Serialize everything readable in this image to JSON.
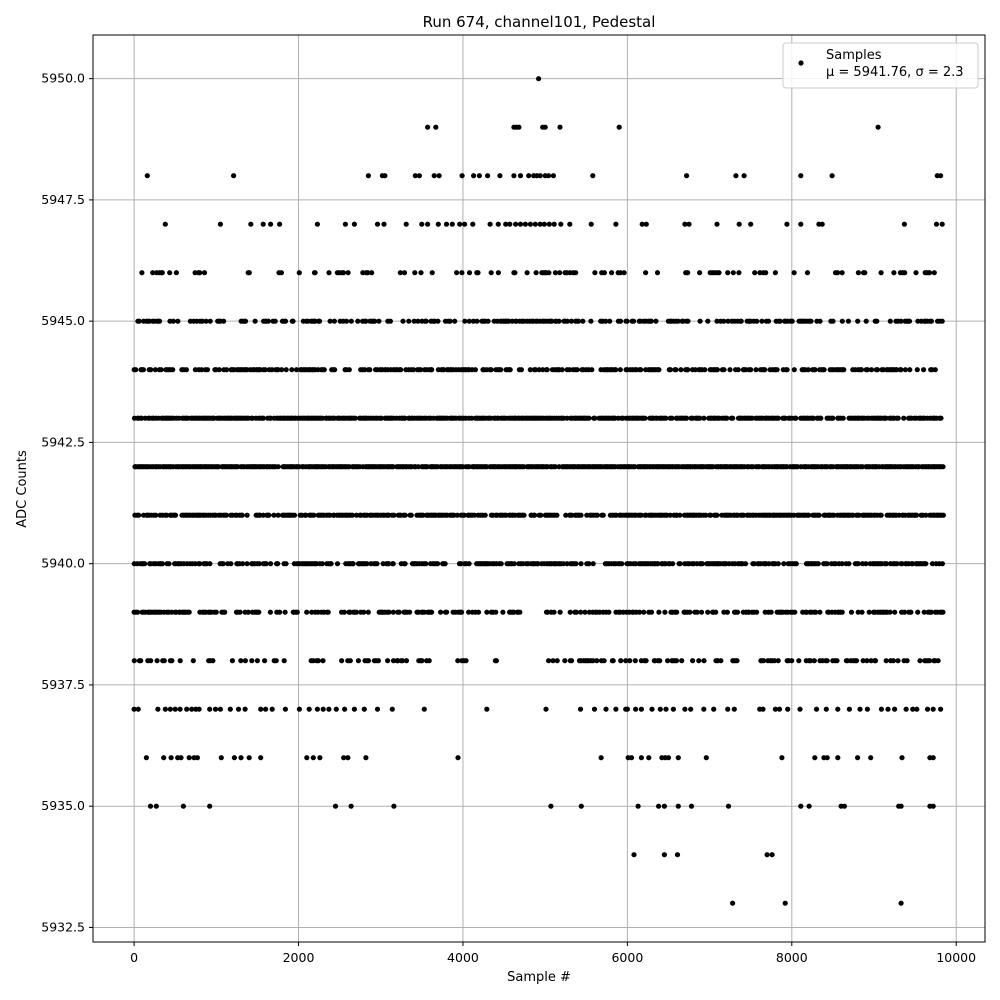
{
  "chart_data": {
    "type": "scatter",
    "title": "Run 674, channel101, Pedestal",
    "xlabel": "Sample #",
    "ylabel": "ADC Counts",
    "xlim": [
      -500,
      10350
    ],
    "ylim": [
      5932.2,
      5950.9
    ],
    "x_ticks": [
      0,
      2000,
      4000,
      6000,
      8000,
      10000
    ],
    "x_tick_labels": [
      "0",
      "2000",
      "4000",
      "6000",
      "8000",
      "10000"
    ],
    "y_ticks": [
      5932.5,
      5935.0,
      5937.5,
      5940.0,
      5942.5,
      5945.0,
      5947.5,
      5950.0
    ],
    "y_tick_labels": [
      "5932.5",
      "5935.0",
      "5937.5",
      "5940.0",
      "5942.5",
      "5945.0",
      "5947.5",
      "5950.0"
    ],
    "grid": true,
    "marker_color": "#000000",
    "legend": {
      "placement": "top-right",
      "series_name": "Samples",
      "stats_label": "μ = 5941.76, σ = 2.3"
    },
    "n_samples": 9850,
    "levels": [
      {
        "y": 5950,
        "x": [
          4920
        ]
      },
      {
        "y": 5949,
        "x": [
          3570,
          3670,
          4620,
          4650,
          4680,
          4970,
          5000,
          5180,
          5900,
          9050
        ]
      },
      {
        "y": 5948,
        "x": [
          160,
          1210,
          2850,
          3020,
          3050,
          3420,
          3470,
          3650,
          3710,
          3990,
          4130,
          4200,
          4300,
          4450,
          4620,
          4700,
          4800,
          4860,
          4900,
          4940,
          5000,
          5040,
          5100,
          5580,
          6720,
          7320,
          7420,
          8110,
          8490,
          9770,
          9810
        ]
      },
      {
        "y": 5947,
        "x": [
          380,
          1050,
          1420,
          1570,
          1660,
          1770,
          2230,
          2570,
          2680,
          2960,
          3040,
          3310,
          3500,
          3570,
          3700,
          3800,
          3870,
          3960,
          4020,
          4120,
          4330,
          4430,
          4520,
          4570,
          4640,
          4700,
          4760,
          4820,
          4880,
          4940,
          4990,
          5050,
          5110,
          5190,
          5300,
          5560,
          5860,
          6180,
          6230,
          6700,
          6750,
          7090,
          7360,
          7500,
          7940,
          8110,
          8330,
          8370,
          9370,
          9760,
          9830
        ]
      },
      {
        "y": 5946,
        "band": [
          [
            0,
            900
          ],
          [
            980,
            1200
          ],
          [
            1380,
            1560
          ],
          [
            1700,
            1800
          ],
          [
            1950,
            3750
          ],
          [
            3840,
            3920
          ],
          [
            3980,
            5600
          ],
          [
            5680,
            5980
          ],
          [
            6160,
            6380
          ],
          [
            6600,
            6760
          ],
          [
            6800,
            7220
          ],
          [
            7280,
            7460
          ],
          [
            7520,
            8200
          ],
          [
            8340,
            9840
          ]
        ],
        "density": 0.22
      },
      {
        "y": 5945,
        "band": [
          [
            0,
            1220
          ],
          [
            1300,
            2260
          ],
          [
            2380,
            2640
          ],
          [
            2720,
            6380
          ],
          [
            6480,
            6740
          ],
          [
            6880,
            8680
          ],
          [
            8760,
            9840
          ]
        ],
        "density": 0.42
      },
      {
        "y": 5944,
        "band": [
          [
            0,
            480
          ],
          [
            560,
            660
          ],
          [
            740,
            9840
          ]
        ],
        "density": 0.55
      },
      {
        "y": 5943,
        "band": [
          [
            0,
            9840
          ]
        ],
        "density": 0.8
      },
      {
        "y": 5942,
        "band": [
          [
            0,
            9840
          ]
        ],
        "density": 0.9
      },
      {
        "y": 5941,
        "band": [
          [
            0,
            4750
          ],
          [
            4800,
            5150
          ],
          [
            5250,
            9840
          ]
        ],
        "density": 0.7
      },
      {
        "y": 5940,
        "band": [
          [
            0,
            3800
          ],
          [
            3940,
            9840
          ]
        ],
        "density": 0.6
      },
      {
        "y": 5939,
        "band": [
          [
            0,
            3980
          ],
          [
            4060,
            4220
          ],
          [
            4270,
            4500
          ],
          [
            4560,
            4720
          ],
          [
            5010,
            9840
          ]
        ],
        "density": 0.42
      },
      {
        "y": 5938,
        "band": [
          [
            0,
            3360
          ],
          [
            3460,
            3620
          ],
          [
            3820,
            4060
          ],
          [
            4260,
            4420
          ],
          [
            4560,
            4640
          ],
          [
            5030,
            5640
          ],
          [
            5680,
            6220
          ],
          [
            6300,
            7330
          ],
          [
            7560,
            9840
          ]
        ],
        "density": 0.35
      },
      {
        "y": 5937,
        "x": [
          0,
          50,
          290,
          380,
          440,
          500,
          560,
          640,
          700,
          750,
          790,
          920,
          990,
          1050,
          1170,
          1270,
          1350,
          1540,
          1600,
          1680,
          1840,
          2010,
          2130,
          2230,
          2300,
          2370,
          2460,
          2560,
          2680,
          2800,
          2960,
          3140,
          3530,
          4290,
          5010,
          5430,
          5600,
          5740,
          5860,
          5980,
          6000,
          6100,
          6170,
          6300,
          6400,
          6470,
          6560,
          6700,
          6770,
          6930,
          7050,
          7220,
          7300,
          7610,
          7650,
          7800,
          7850,
          7950,
          8100,
          8300,
          8420,
          8560,
          8700,
          8830,
          8920,
          9090,
          9170,
          9250,
          9390,
          9470,
          9520,
          9650,
          9720,
          9810
        ]
      },
      {
        "y": 5936,
        "x": [
          150,
          360,
          450,
          530,
          570,
          670,
          730,
          770,
          1060,
          1220,
          1300,
          1400,
          1540,
          2100,
          2180,
          2260,
          2550,
          2600,
          2820,
          3940,
          5680,
          6010,
          6050,
          6170,
          6260,
          6420,
          6460,
          6500,
          6620,
          6960,
          7880,
          8280,
          8390,
          8430,
          8560,
          8800,
          8960,
          9340,
          9680,
          9720
        ]
      },
      {
        "y": 5935,
        "x": [
          200,
          270,
          600,
          920,
          2450,
          2640,
          3160,
          5070,
          5440,
          6130,
          6380,
          6450,
          6620,
          6780,
          7230,
          8110,
          8210,
          8600,
          8640,
          9300,
          9330,
          9680,
          9720
        ]
      },
      {
        "y": 5934,
        "x": [
          6080,
          6450,
          6610,
          7700,
          7760
        ]
      },
      {
        "y": 5933,
        "x": [
          7280,
          7920,
          9330
        ]
      }
    ]
  }
}
